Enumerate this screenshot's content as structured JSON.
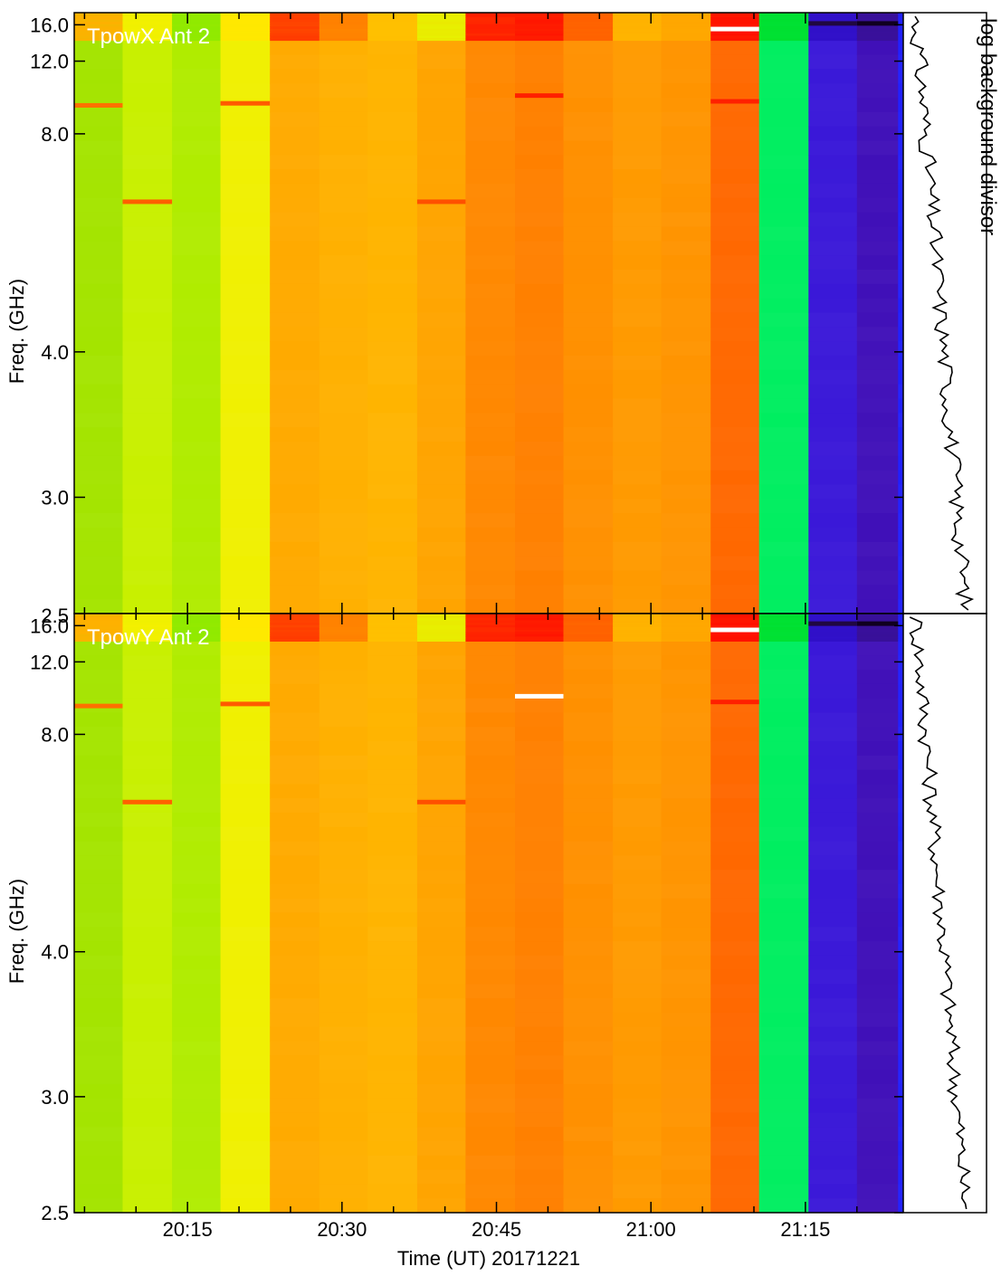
{
  "chart_data": {
    "type": "heatmap",
    "xlabel": "Time (UT) 20171221",
    "x_ticks": [
      "20:15",
      "20:30",
      "20:45",
      "21:00",
      "21:15"
    ],
    "x_tick_minutes": [
      15,
      30,
      45,
      60,
      75
    ],
    "x_range_minutes": [
      4,
      84.5
    ],
    "ylabel": "Freq. (GHz)",
    "y_ticks": [
      "16.0",
      "12.0",
      "8.0",
      "4.0",
      "3.0",
      "2.5"
    ],
    "y_tick_values": [
      16.0,
      12.0,
      8.0,
      4.0,
      3.0,
      2.5
    ],
    "y_range": [
      2.5,
      18.0
    ],
    "side_label": "log background divisor",
    "palette": [
      "#a0e000",
      "#ccf000",
      "#8ce800",
      "#f0f000",
      "#ffa800",
      "#ffb400",
      "#ff8a00",
      "#ff6a00",
      "#ff1000",
      "#00ee60",
      "#3a10d0"
    ],
    "panels": [
      {
        "label": "TpowX Ant 2",
        "columns": [
          {
            "start": 4.0,
            "end": 8.7,
            "low": "#a4e400",
            "high": "#ffb000"
          },
          {
            "start": 8.7,
            "end": 13.5,
            "low": "#c8f000",
            "high": "#f4f000"
          },
          {
            "start": 13.5,
            "end": 18.2,
            "low": "#b0ec00",
            "high": "#90ea00"
          },
          {
            "start": 18.2,
            "end": 23.0,
            "low": "#f0f000",
            "high": "#ffe800"
          },
          {
            "start": 23.0,
            "end": 27.8,
            "low": "#ffaa00",
            "high": "#ff3a00"
          },
          {
            "start": 27.8,
            "end": 32.5,
            "low": "#ffb000",
            "high": "#ff8000"
          },
          {
            "start": 32.5,
            "end": 37.3,
            "low": "#ffb400",
            "high": "#ffc000"
          },
          {
            "start": 37.3,
            "end": 42.0,
            "low": "#ffa400",
            "high": "#e8f000"
          },
          {
            "start": 42.0,
            "end": 46.8,
            "low": "#ff8800",
            "high": "#ff2000"
          },
          {
            "start": 46.8,
            "end": 51.5,
            "low": "#ff8000",
            "high": "#ff1400"
          },
          {
            "start": 51.5,
            "end": 56.3,
            "low": "#ff9000",
            "high": "#ff6000"
          },
          {
            "start": 56.3,
            "end": 61.0,
            "low": "#ff9a00",
            "high": "#ffb400"
          },
          {
            "start": 61.0,
            "end": 65.8,
            "low": "#ff9400",
            "high": "#ffa800"
          },
          {
            "start": 65.8,
            "end": 70.5,
            "low": "#ff6800",
            "high": "#ff1000"
          },
          {
            "start": 70.5,
            "end": 75.3,
            "low": "#00ee60",
            "high": "#00e030"
          },
          {
            "start": 75.3,
            "end": 80.0,
            "low": "#3a18d8",
            "high": "#3010c8"
          },
          {
            "start": 80.0,
            "end": 84.0,
            "low": "#4010b8",
            "high": "#381098"
          },
          {
            "start": 84.0,
            "end": 84.5,
            "low": "#2020ff",
            "high": "#2020ff"
          }
        ],
        "lines": [
          {
            "start": 4.0,
            "end": 8.7,
            "freq": 9.2,
            "color": "#ff7000"
          },
          {
            "start": 8.7,
            "end": 13.5,
            "freq": 6.1,
            "color": "#ff6000"
          },
          {
            "start": 18.2,
            "end": 23.0,
            "freq": 9.3,
            "color": "#ff5a00"
          },
          {
            "start": 46.8,
            "end": 51.5,
            "freq": 9.7,
            "color": "#ff2000"
          },
          {
            "start": 37.3,
            "end": 42.0,
            "freq": 6.1,
            "color": "#ff5000"
          },
          {
            "start": 65.8,
            "end": 70.5,
            "freq": 9.4,
            "color": "#ff2000"
          },
          {
            "start": 65.8,
            "end": 70.5,
            "freq": 15.4,
            "color": "#ffffff"
          },
          {
            "start": 80.0,
            "end": 84.0,
            "freq": 16.2,
            "color": "#100020"
          },
          {
            "start": 75.3,
            "end": 80.0,
            "freq": 16.2,
            "color": "#200840"
          }
        ]
      },
      {
        "label": "TpowY Ant 2",
        "columns": [
          {
            "start": 4.0,
            "end": 8.7,
            "low": "#a4e400",
            "high": "#ffb000"
          },
          {
            "start": 8.7,
            "end": 13.5,
            "low": "#c8f000",
            "high": "#f4f000"
          },
          {
            "start": 13.5,
            "end": 18.2,
            "low": "#b0ec00",
            "high": "#90ea00"
          },
          {
            "start": 18.2,
            "end": 23.0,
            "low": "#f0f000",
            "high": "#ffe800"
          },
          {
            "start": 23.0,
            "end": 27.8,
            "low": "#ffaa00",
            "high": "#ff3a00"
          },
          {
            "start": 27.8,
            "end": 32.5,
            "low": "#ffb000",
            "high": "#ff8000"
          },
          {
            "start": 32.5,
            "end": 37.3,
            "low": "#ffb400",
            "high": "#ffc000"
          },
          {
            "start": 37.3,
            "end": 42.0,
            "low": "#ffa400",
            "high": "#e8f000"
          },
          {
            "start": 42.0,
            "end": 46.8,
            "low": "#ff8800",
            "high": "#ff2000"
          },
          {
            "start": 46.8,
            "end": 51.5,
            "low": "#ff8000",
            "high": "#ff1400"
          },
          {
            "start": 51.5,
            "end": 56.3,
            "low": "#ff9000",
            "high": "#ff6000"
          },
          {
            "start": 56.3,
            "end": 61.0,
            "low": "#ff9a00",
            "high": "#ffb400"
          },
          {
            "start": 61.0,
            "end": 65.8,
            "low": "#ff9400",
            "high": "#ffa800"
          },
          {
            "start": 65.8,
            "end": 70.5,
            "low": "#ff6800",
            "high": "#ff1000"
          },
          {
            "start": 70.5,
            "end": 75.3,
            "low": "#00ee60",
            "high": "#00e030"
          },
          {
            "start": 75.3,
            "end": 80.0,
            "low": "#3a18d8",
            "high": "#3010c8"
          },
          {
            "start": 80.0,
            "end": 84.0,
            "low": "#4010b8",
            "high": "#381098"
          },
          {
            "start": 84.0,
            "end": 84.5,
            "low": "#2020ff",
            "high": "#2020ff"
          }
        ],
        "lines": [
          {
            "start": 4.0,
            "end": 8.7,
            "freq": 9.2,
            "color": "#ff7000"
          },
          {
            "start": 8.7,
            "end": 13.5,
            "freq": 6.1,
            "color": "#ff6000"
          },
          {
            "start": 18.2,
            "end": 23.0,
            "freq": 9.3,
            "color": "#ff5a00"
          },
          {
            "start": 46.8,
            "end": 51.5,
            "freq": 9.7,
            "color": "#ffffff"
          },
          {
            "start": 37.3,
            "end": 42.0,
            "freq": 6.1,
            "color": "#ff5000"
          },
          {
            "start": 65.8,
            "end": 70.5,
            "freq": 9.4,
            "color": "#ff2000"
          },
          {
            "start": 65.8,
            "end": 70.5,
            "freq": 15.4,
            "color": "#ffffff"
          },
          {
            "start": 80.0,
            "end": 84.0,
            "freq": 16.3,
            "color": "#100020"
          },
          {
            "start": 75.3,
            "end": 80.0,
            "freq": 16.3,
            "color": "#200840"
          }
        ]
      }
    ]
  }
}
